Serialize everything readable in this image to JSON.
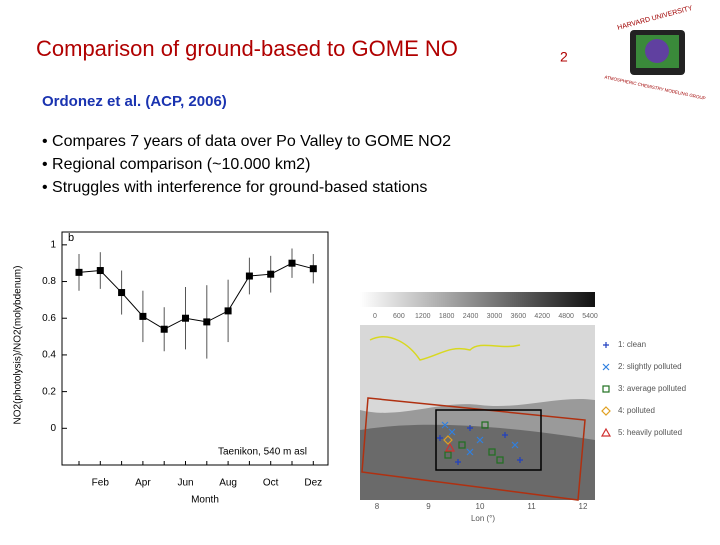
{
  "slide": {
    "title": "Comparison of ground-based to GOME NO",
    "title_subscript": "2",
    "subtitle": "Ordonez et al. (ACP, 2006)",
    "bullets": [
      "• Compares 7 years of data over Po Valley to GOME NO2",
      "• Regional comparison (~10.000 km2)",
      "• Struggles with interference for ground-based stations"
    ],
    "logo": {
      "top": "HARVARD UNIVERSITY",
      "bottom": "ATMOSPHERIC CHEMISTRY MODELING GROUP"
    }
  },
  "chart_data": [
    {
      "type": "line",
      "panel_label": "b",
      "annotation": "Taenikon, 540 m asl",
      "xlabel": "Month",
      "ylabel": "NO2(photolysis)/NO2(molybdenum)",
      "categories": [
        null,
        "Feb",
        null,
        "Apr",
        null,
        "Jun",
        null,
        "Aug",
        null,
        "Oct",
        null,
        "Dez"
      ],
      "values": [
        0.85,
        0.86,
        0.74,
        0.61,
        0.54,
        0.6,
        0.58,
        0.64,
        0.83,
        0.84,
        0.9,
        0.87
      ],
      "errors": [
        0.1,
        0.1,
        0.12,
        0.14,
        0.12,
        0.17,
        0.2,
        0.17,
        0.1,
        0.1,
        0.08,
        0.08
      ],
      "color": "#000000",
      "ylim": [
        -0.2,
        1.07
      ],
      "yticks": [
        0,
        0.2,
        0.4,
        0.6,
        0.8,
        1
      ]
    },
    {
      "type": "map",
      "xlabel": "Lon (°)",
      "xlim": [
        7.7,
        12.2
      ],
      "xticks": [
        8,
        9,
        10,
        11,
        12
      ],
      "colorbar": {
        "lim": [
          0,
          5400
        ],
        "ticks": [
          0,
          600,
          1200,
          1800,
          2400,
          3000,
          3600,
          4200,
          4800,
          5400
        ]
      },
      "legend": [
        {
          "name": "1: clean",
          "color": "#2040c0",
          "marker": "plus"
        },
        {
          "name": "2: slightly polluted",
          "color": "#3080e0",
          "marker": "cross"
        },
        {
          "name": "3: average polluted",
          "color": "#207020",
          "marker": "square"
        },
        {
          "name": "4: polluted",
          "color": "#e0a020",
          "marker": "diamond"
        },
        {
          "name": "5: heavily polluted",
          "color": "#d03030",
          "marker": "triangle"
        }
      ]
    }
  ]
}
